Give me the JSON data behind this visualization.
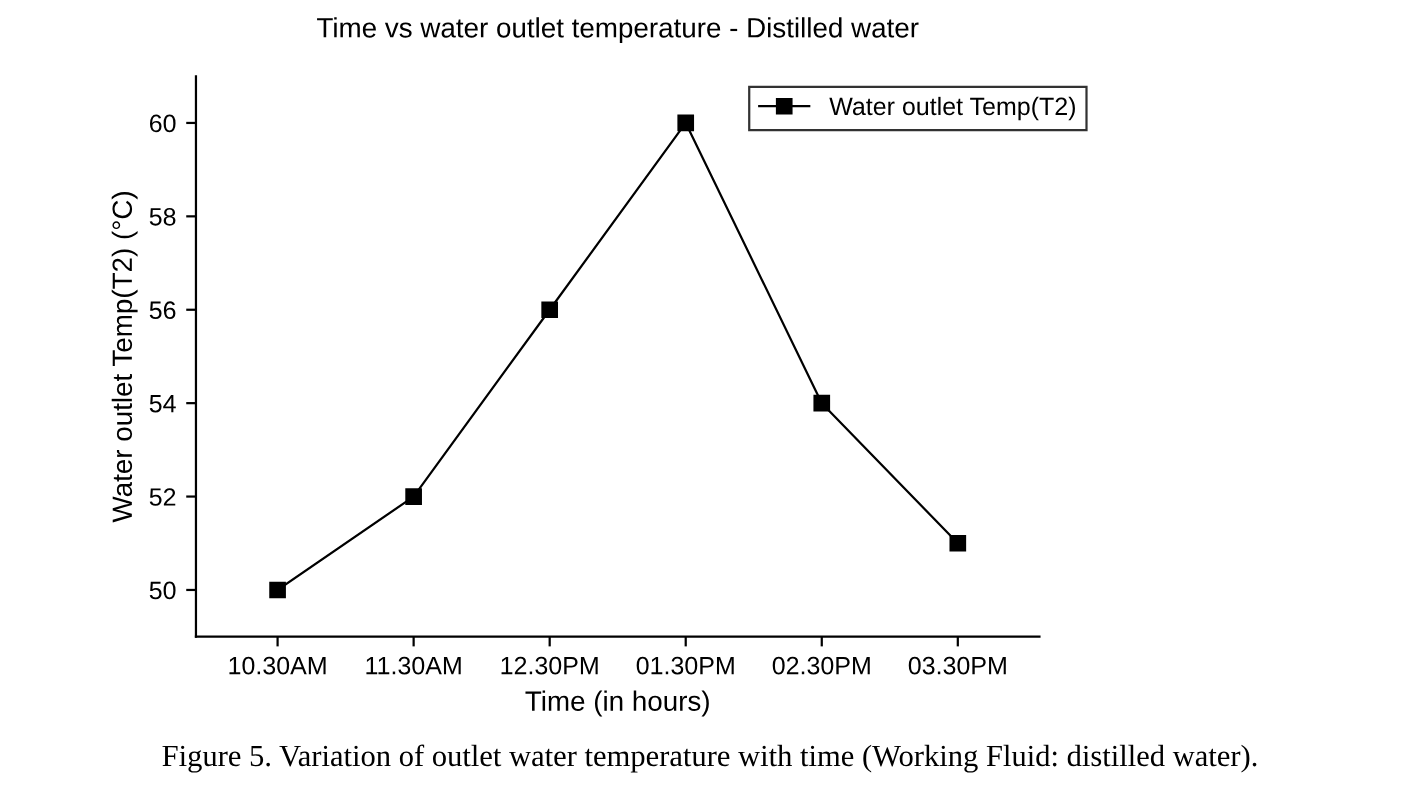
{
  "chart_data": {
    "type": "line",
    "title": "Time vs water outlet temperature - Distilled water",
    "xlabel": "Time (in hours)",
    "ylabel": "Water outlet Temp(T2) (°C)",
    "categories": [
      "10.30AM",
      "11.30AM",
      "12.30PM",
      "01.30PM",
      "02.30PM",
      "03.30PM"
    ],
    "series": [
      {
        "name": "Water outlet Temp(T2)",
        "color": "#000000",
        "values": [
          50,
          52,
          56,
          60,
          54,
          51
        ]
      }
    ],
    "ylim": [
      49,
      61
    ],
    "yticks": [
      50,
      52,
      54,
      56,
      58,
      60
    ],
    "marker": "square",
    "line_style": "solid",
    "legend": "top right",
    "grid": false,
    "annotations": [
      "Figure 5. Variation of outlet water temperature with time (Working Fluid: distilled water)."
    ]
  }
}
